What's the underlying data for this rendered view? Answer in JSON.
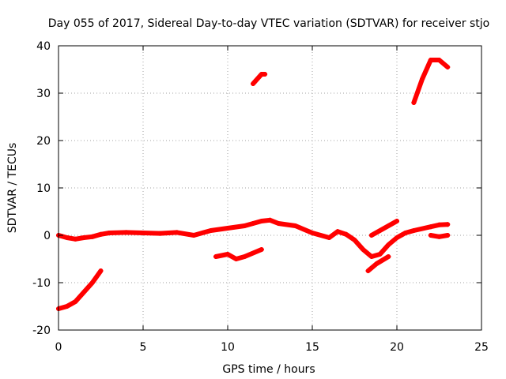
{
  "chart_data": {
    "type": "scatter",
    "title": "Day 055 of 2017, Sidereal Day-to-day VTEC variation (SDTVAR) for receiver stjo",
    "xlabel": "GPS time / hours",
    "ylabel": "SDTVAR / TECUs",
    "xlim": [
      0,
      25
    ],
    "ylim": [
      -20,
      40
    ],
    "xticks": [
      0,
      5,
      10,
      15,
      20,
      25
    ],
    "yticks": [
      -20,
      -10,
      0,
      10,
      20,
      30,
      40
    ],
    "grid": true,
    "series_color": "#ff0000",
    "series": [
      {
        "name": "main-trace",
        "x": [
          0,
          0.5,
          1,
          1.5,
          2,
          2.5,
          3,
          4,
          5,
          6,
          7,
          8,
          9,
          10,
          11,
          11.5,
          12,
          12.5,
          13,
          14,
          15,
          16,
          16.5,
          17,
          17.5,
          18,
          18.5,
          19,
          19.5,
          20,
          20.5,
          21,
          22,
          22.5,
          23
        ],
        "y": [
          0,
          -0.5,
          -0.8,
          -0.5,
          -0.3,
          0.2,
          0.5,
          0.6,
          0.5,
          0.4,
          0.6,
          0,
          1,
          1.5,
          2,
          2.5,
          3,
          3.2,
          2.5,
          2,
          0.5,
          -0.5,
          0.8,
          0.2,
          -1,
          -3,
          -4.5,
          -4,
          -2,
          -0.5,
          0.5,
          1,
          1.8,
          2.2,
          2.3
        ]
      },
      {
        "name": "early-segment",
        "x": [
          0,
          0.5,
          1,
          1.5,
          2,
          2.5
        ],
        "y": [
          -15.5,
          -15,
          -14,
          -12,
          -10,
          -7.5
        ]
      },
      {
        "name": "midday-low-segment",
        "x": [
          9.3,
          10,
          10.5,
          11,
          12
        ],
        "y": [
          -4.5,
          -4,
          -5,
          -4.5,
          -3
        ]
      },
      {
        "name": "noon-high-segment",
        "x": [
          11.5,
          12,
          12.2
        ],
        "y": [
          32,
          34,
          34
        ]
      },
      {
        "name": "evening-segment",
        "x": [
          18.5,
          19,
          19.5,
          20
        ],
        "y": [
          0,
          1,
          2,
          3
        ]
      },
      {
        "name": "late-low-segment",
        "x": [
          18.3,
          18.8,
          19.5
        ],
        "y": [
          -7.5,
          -6,
          -4.5
        ]
      },
      {
        "name": "late-high-segment",
        "x": [
          21,
          21.5,
          22,
          22.5,
          23
        ],
        "y": [
          28,
          33,
          37,
          37,
          35.5
        ]
      },
      {
        "name": "end-segment",
        "x": [
          22,
          22.5,
          23
        ],
        "y": [
          0,
          -0.3,
          0
        ]
      }
    ]
  }
}
